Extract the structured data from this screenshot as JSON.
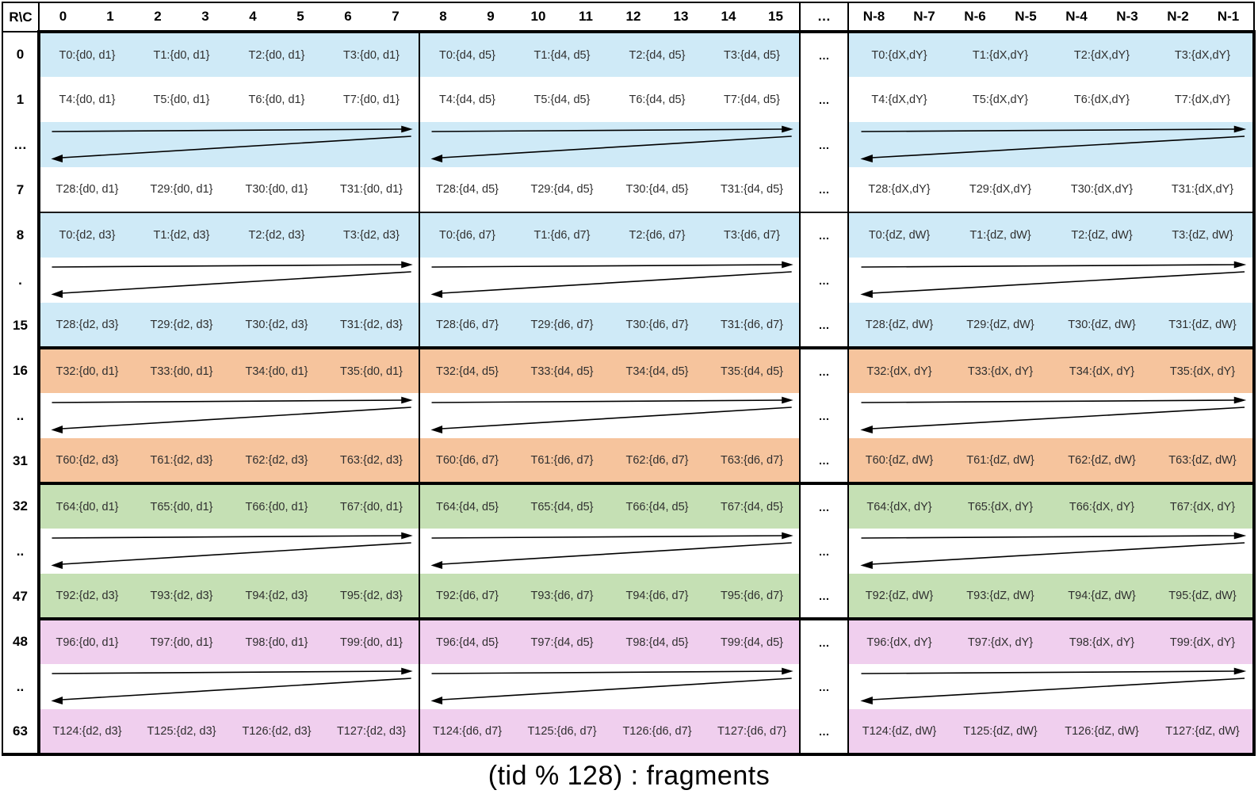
{
  "table": {
    "corner": "R\\C",
    "ellipsis": "…",
    "header_groups": [
      {
        "type": "cols",
        "labels": [
          "0",
          "1",
          "2",
          "3",
          "4",
          "5",
          "6",
          "7"
        ]
      },
      {
        "type": "cols",
        "labels": [
          "8",
          "9",
          "10",
          "11",
          "12",
          "13",
          "14",
          "15"
        ]
      },
      {
        "type": "ellipsis",
        "label": "…"
      },
      {
        "type": "cols",
        "labels": [
          "N-8",
          "N-7",
          "N-6",
          "N-5",
          "N-4",
          "N-3",
          "N-2",
          "N-1"
        ]
      }
    ],
    "sections": [
      {
        "name": "rows-0-15",
        "color": "#cfeaf7",
        "rows": [
          {
            "label": "0",
            "kind": "data",
            "shaded": true,
            "groups": [
              [
                "T0:{d0, d1}",
                "T1:{d0, d1}",
                "T2:{d0, d1}",
                "T3:{d0, d1}"
              ],
              [
                "T0:{d4, d5}",
                "T1:{d4, d5}",
                "T2:{d4, d5}",
                "T3:{d4, d5}"
              ],
              [
                "T0:{dX,dY}",
                "T1:{dX,dY}",
                "T2:{dX,dY}",
                "T3:{dX,dY}"
              ]
            ]
          },
          {
            "label": "1",
            "kind": "data",
            "shaded": false,
            "groups": [
              [
                "T4:{d0, d1}",
                "T5:{d0, d1}",
                "T6:{d0, d1}",
                "T7:{d0, d1}"
              ],
              [
                "T4:{d4, d5}",
                "T5:{d4, d5}",
                "T6:{d4, d5}",
                "T7:{d4, d5}"
              ],
              [
                "T4:{dX,dY}",
                "T5:{dX,dY}",
                "T6:{dX,dY}",
                "T7:{dX,dY}"
              ]
            ]
          },
          {
            "label": "…",
            "kind": "arrow",
            "shaded": true
          },
          {
            "label": "7",
            "kind": "data",
            "shaded": false,
            "groups": [
              [
                "T28:{d0, d1}",
                "T29:{d0, d1}",
                "T30:{d0, d1}",
                "T31:{d0, d1}"
              ],
              [
                "T28:{d4, d5}",
                "T29:{d4, d5}",
                "T30:{d4, d5}",
                "T31:{d4, d5}"
              ],
              [
                "T28:{dX,dY}",
                "T29:{dX,dY}",
                "T30:{dX,dY}",
                "T31:{dX,dY}"
              ]
            ]
          },
          {
            "label": "8",
            "kind": "data",
            "shaded": true,
            "divider": true,
            "groups": [
              [
                "T0:{d2, d3}",
                "T1:{d2, d3}",
                "T2:{d2, d3}",
                "T3:{d2, d3}"
              ],
              [
                "T0:{d6, d7}",
                "T1:{d6, d7}",
                "T2:{d6, d7}",
                "T3:{d6, d7}"
              ],
              [
                "T0:{dZ, dW}",
                "T1:{dZ, dW}",
                "T2:{dZ, dW}",
                "T3:{dZ, dW}"
              ]
            ]
          },
          {
            "label": ".",
            "kind": "arrow",
            "shaded": false
          },
          {
            "label": "15",
            "kind": "data",
            "shaded": true,
            "groups": [
              [
                "T28:{d2, d3}",
                "T29:{d2, d3}",
                "T30:{d2, d3}",
                "T31:{d2, d3}"
              ],
              [
                "T28:{d6, d7}",
                "T29:{d6, d7}",
                "T30:{d6, d7}",
                "T31:{d6, d7}"
              ],
              [
                "T28:{dZ, dW}",
                "T29:{dZ, dW}",
                "T30:{dZ, dW}",
                "T31:{dZ, dW}"
              ]
            ]
          }
        ]
      },
      {
        "name": "rows-16-31",
        "color": "#f6c49d",
        "rows": [
          {
            "label": "16",
            "kind": "data",
            "shaded": true,
            "groups": [
              [
                "T32:{d0, d1}",
                "T33:{d0, d1}",
                "T34:{d0, d1}",
                "T35:{d0, d1}"
              ],
              [
                "T32:{d4, d5}",
                "T33:{d4, d5}",
                "T34:{d4, d5}",
                "T35:{d4, d5}"
              ],
              [
                "T32:{dX, dY}",
                "T33:{dX, dY}",
                "T34:{dX, dY}",
                "T35:{dX, dY}"
              ]
            ]
          },
          {
            "label": "..",
            "kind": "arrow",
            "shaded": false
          },
          {
            "label": "31",
            "kind": "data",
            "shaded": true,
            "groups": [
              [
                "T60:{d2, d3}",
                "T61:{d2, d3}",
                "T62:{d2, d3}",
                "T63:{d2, d3}"
              ],
              [
                "T60:{d6, d7}",
                "T61:{d6, d7}",
                "T62:{d6, d7}",
                "T63:{d6, d7}"
              ],
              [
                "T60:{dZ, dW}",
                "T61:{dZ, dW}",
                "T62:{dZ, dW}",
                "T63:{dZ, dW}"
              ]
            ]
          }
        ]
      },
      {
        "name": "rows-32-47",
        "color": "#c5e0b4",
        "rows": [
          {
            "label": "32",
            "kind": "data",
            "shaded": true,
            "groups": [
              [
                "T64:{d0, d1}",
                "T65:{d0, d1}",
                "T66:{d0, d1}",
                "T67:{d0, d1}"
              ],
              [
                "T64:{d4, d5}",
                "T65:{d4, d5}",
                "T66:{d4, d5}",
                "T67:{d4, d5}"
              ],
              [
                "T64:{dX, dY}",
                "T65:{dX, dY}",
                "T66:{dX, dY}",
                "T67:{dX, dY}"
              ]
            ]
          },
          {
            "label": "..",
            "kind": "arrow",
            "shaded": false
          },
          {
            "label": "47",
            "kind": "data",
            "shaded": true,
            "groups": [
              [
                "T92:{d2, d3}",
                "T93:{d2, d3}",
                "T94:{d2, d3}",
                "T95:{d2, d3}"
              ],
              [
                "T92:{d6, d7}",
                "T93:{d6, d7}",
                "T94:{d6, d7}",
                "T95:{d6, d7}"
              ],
              [
                "T92:{dZ, dW}",
                "T93:{dZ, dW}",
                "T94:{dZ, dW}",
                "T95:{dZ, dW}"
              ]
            ]
          }
        ]
      },
      {
        "name": "rows-48-63",
        "color": "#f0cfee",
        "rows": [
          {
            "label": "48",
            "kind": "data",
            "shaded": true,
            "groups": [
              [
                "T96:{d0, d1}",
                "T97:{d0, d1}",
                "T98:{d0, d1}",
                "T99:{d0, d1}"
              ],
              [
                "T96:{d4, d5}",
                "T97:{d4, d5}",
                "T98:{d4, d5}",
                "T99:{d4, d5}"
              ],
              [
                "T96:{dX, dY}",
                "T97:{dX, dY}",
                "T98:{dX, dY}",
                "T99:{dX, dY}"
              ]
            ]
          },
          {
            "label": "..",
            "kind": "arrow",
            "shaded": false
          },
          {
            "label": "63",
            "kind": "data",
            "shaded": true,
            "groups": [
              [
                "T124:{d2, d3}",
                "T125:{d2, d3}",
                "T126:{d2, d3}",
                "T127:{d2, d3}"
              ],
              [
                "T124:{d6, d7}",
                "T125:{d6, d7}",
                "T126:{d6, d7}",
                "T127:{d6, d7}"
              ],
              [
                "T124:{dZ, dW}",
                "T125:{dZ, dW}",
                "T126:{dZ, dW}",
                "T127:{dZ, dW}"
              ]
            ]
          }
        ]
      }
    ]
  },
  "caption": "(tid % 128) : fragments"
}
